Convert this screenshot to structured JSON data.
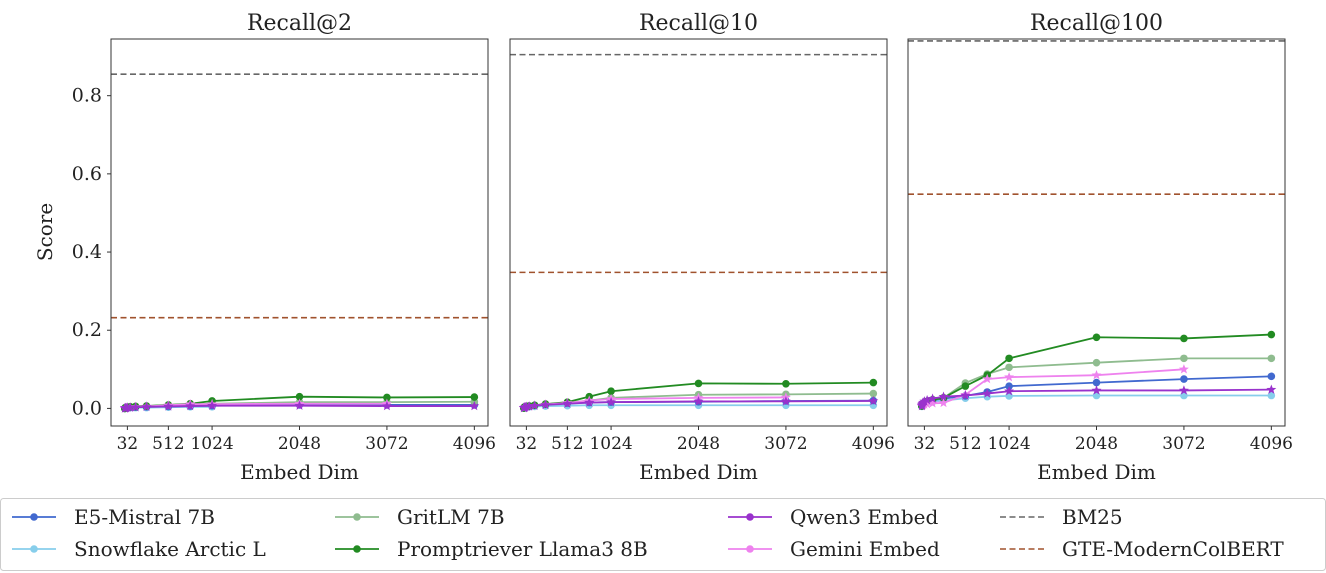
{
  "chart_data": {
    "type": "line",
    "ylabel": "Score",
    "xlabel": "Embed Dim",
    "ylim": [
      -0.045,
      0.945
    ],
    "yticks": [
      0.0,
      0.2,
      0.4,
      0.6,
      0.8
    ],
    "ytick_labels": [
      "0.0",
      "0.2",
      "0.4",
      "0.6",
      "0.8"
    ],
    "xlim": [
      -160,
      4256
    ],
    "xticks": [
      32,
      512,
      1024,
      2048,
      3072,
      4096
    ],
    "xtick_labels": [
      "32",
      "512",
      "1024",
      "2048",
      "3072",
      "4096"
    ],
    "grid": false,
    "legend_position": "bottom",
    "colors": {
      "E5-Mistral 7B": "#4169cf",
      "Snowflake Arctic L": "#87ceeb",
      "GritLM 7B": "#8fbc8f",
      "Promptriever Llama3 8B": "#228b22",
      "Qwen3 Embed": "#9932cc",
      "Gemini Embed": "#ee82ee",
      "BM25": "#666666",
      "GTE-ModernColBERT": "#a0522d"
    },
    "legend": [
      {
        "name": "E5-Mistral 7B",
        "style": "line-marker"
      },
      {
        "name": "Snowflake Arctic L",
        "style": "line-marker"
      },
      {
        "name": "GritLM 7B",
        "style": "line-marker"
      },
      {
        "name": "Promptriever Llama3 8B",
        "style": "line-marker"
      },
      {
        "name": "Qwen3 Embed",
        "style": "line-marker"
      },
      {
        "name": "Gemini Embed",
        "style": "line-marker"
      },
      {
        "name": "BM25",
        "style": "dashed"
      },
      {
        "name": "GTE-ModernColBERT",
        "style": "dashed"
      }
    ],
    "panels": [
      {
        "title": "Recall@2",
        "baselines": [
          {
            "name": "BM25",
            "value": 0.855
          },
          {
            "name": "GTE-ModernColBERT",
            "value": 0.232
          }
        ],
        "series": [
          {
            "name": "Snowflake Arctic L",
            "marker": "circle",
            "x": [
              2,
              4,
              8,
              16,
              32,
              64,
              128,
              256,
              512,
              768,
              1024
            ],
            "y": [
              0.0,
              0.001,
              0.001,
              0.001,
              0.001,
              0.002,
              0.002,
              0.002,
              0.003,
              0.004,
              0.004
            ]
          },
          {
            "name": "E5-Mistral 7B",
            "marker": "circle",
            "x": [
              2,
              4,
              8,
              16,
              32,
              64,
              128,
              256,
              512,
              768,
              1024,
              2048,
              3072,
              4096
            ],
            "y": [
              0.0,
              0.001,
              0.001,
              0.002,
              0.002,
              0.003,
              0.003,
              0.004,
              0.005,
              0.006,
              0.007,
              0.009,
              0.009,
              0.009
            ]
          },
          {
            "name": "GritLM 7B",
            "marker": "circle",
            "x": [
              2,
              4,
              8,
              16,
              32,
              64,
              128,
              256,
              512,
              768,
              1024,
              2048,
              3072,
              4096
            ],
            "y": [
              0.0,
              0.001,
              0.002,
              0.002,
              0.003,
              0.004,
              0.005,
              0.006,
              0.008,
              0.01,
              0.012,
              0.016,
              0.016,
              0.017
            ]
          },
          {
            "name": "Promptriever Llama3 8B",
            "marker": "circle",
            "x": [
              2,
              4,
              8,
              16,
              32,
              64,
              128,
              256,
              512,
              768,
              1024,
              2048,
              3072,
              4096
            ],
            "y": [
              0.0,
              0.001,
              0.002,
              0.002,
              0.003,
              0.004,
              0.005,
              0.006,
              0.009,
              0.012,
              0.019,
              0.03,
              0.028,
              0.029
            ]
          },
          {
            "name": "Gemini Embed",
            "marker": "star",
            "x": [
              2,
              4,
              8,
              16,
              32,
              64,
              128,
              256,
              512,
              768,
              1024,
              2048,
              3072
            ],
            "y": [
              0.0,
              0.001,
              0.001,
              0.002,
              0.002,
              0.003,
              0.004,
              0.005,
              0.008,
              0.011,
              0.011,
              0.012,
              0.012
            ]
          },
          {
            "name": "Qwen3 Embed",
            "marker": "star",
            "x": [
              2,
              4,
              8,
              16,
              32,
              64,
              128,
              256,
              512,
              768,
              1024,
              2048,
              3072,
              4096
            ],
            "y": [
              0.0,
              0.001,
              0.001,
              0.001,
              0.002,
              0.002,
              0.003,
              0.004,
              0.005,
              0.006,
              0.007,
              0.007,
              0.006,
              0.006
            ]
          }
        ]
      },
      {
        "title": "Recall@10",
        "baselines": [
          {
            "name": "BM25",
            "value": 0.905
          },
          {
            "name": "GTE-ModernColBERT",
            "value": 0.348
          }
        ],
        "series": [
          {
            "name": "Snowflake Arctic L",
            "marker": "circle",
            "x": [
              2,
              4,
              8,
              16,
              32,
              64,
              128,
              256,
              512,
              768,
              1024,
              2048,
              3072,
              4096
            ],
            "y": [
              0.001,
              0.001,
              0.002,
              0.002,
              0.003,
              0.004,
              0.005,
              0.006,
              0.007,
              0.008,
              0.008,
              0.008,
              0.008,
              0.008
            ]
          },
          {
            "name": "E5-Mistral 7B",
            "marker": "circle",
            "x": [
              2,
              4,
              8,
              16,
              32,
              64,
              128,
              256,
              512,
              768,
              1024,
              2048,
              3072,
              4096
            ],
            "y": [
              0.001,
              0.002,
              0.003,
              0.004,
              0.005,
              0.006,
              0.008,
              0.01,
              0.013,
              0.015,
              0.016,
              0.017,
              0.019,
              0.02
            ]
          },
          {
            "name": "GritLM 7B",
            "marker": "circle",
            "x": [
              2,
              4,
              8,
              16,
              32,
              64,
              128,
              256,
              512,
              768,
              1024,
              2048,
              3072,
              4096
            ],
            "y": [
              0.001,
              0.002,
              0.003,
              0.004,
              0.005,
              0.006,
              0.008,
              0.011,
              0.015,
              0.02,
              0.027,
              0.035,
              0.036,
              0.038
            ]
          },
          {
            "name": "Promptriever Llama3 8B",
            "marker": "circle",
            "x": [
              2,
              4,
              8,
              16,
              32,
              64,
              128,
              256,
              512,
              768,
              1024,
              2048,
              3072,
              4096
            ],
            "y": [
              0.001,
              0.002,
              0.003,
              0.004,
              0.005,
              0.006,
              0.008,
              0.011,
              0.016,
              0.03,
              0.044,
              0.064,
              0.063,
              0.066
            ]
          },
          {
            "name": "Gemini Embed",
            "marker": "star",
            "x": [
              2,
              4,
              8,
              16,
              32,
              64,
              128,
              256,
              512,
              768,
              1024,
              2048,
              3072
            ],
            "y": [
              0.001,
              0.002,
              0.002,
              0.003,
              0.004,
              0.005,
              0.007,
              0.01,
              0.014,
              0.02,
              0.024,
              0.027,
              0.028
            ]
          },
          {
            "name": "Qwen3 Embed",
            "marker": "star",
            "x": [
              2,
              4,
              8,
              16,
              32,
              64,
              128,
              256,
              512,
              768,
              1024,
              2048,
              3072,
              4096
            ],
            "y": [
              0.001,
              0.002,
              0.002,
              0.003,
              0.004,
              0.005,
              0.007,
              0.009,
              0.012,
              0.015,
              0.016,
              0.018,
              0.018,
              0.019
            ]
          }
        ]
      },
      {
        "title": "Recall@100",
        "baselines": [
          {
            "name": "BM25",
            "value": 0.94
          },
          {
            "name": "GTE-ModernColBERT",
            "value": 0.548
          }
        ],
        "series": [
          {
            "name": "Snowflake Arctic L",
            "marker": "circle",
            "x": [
              2,
              4,
              8,
              16,
              32,
              64,
              128,
              256,
              512,
              768,
              1024,
              2048,
              3072,
              4096
            ],
            "y": [
              0.005,
              0.007,
              0.009,
              0.011,
              0.013,
              0.015,
              0.017,
              0.02,
              0.026,
              0.03,
              0.032,
              0.033,
              0.033,
              0.033
            ]
          },
          {
            "name": "E5-Mistral 7B",
            "marker": "circle",
            "x": [
              2,
              4,
              8,
              16,
              32,
              64,
              128,
              256,
              512,
              768,
              1024,
              2048,
              3072,
              4096
            ],
            "y": [
              0.006,
              0.008,
              0.01,
              0.012,
              0.015,
              0.018,
              0.021,
              0.025,
              0.032,
              0.042,
              0.057,
              0.066,
              0.075,
              0.082
            ]
          },
          {
            "name": "GritLM 7B",
            "marker": "circle",
            "x": [
              2,
              4,
              8,
              16,
              32,
              64,
              128,
              256,
              512,
              768,
              1024,
              2048,
              3072,
              4096
            ],
            "y": [
              0.006,
              0.008,
              0.01,
              0.012,
              0.015,
              0.018,
              0.022,
              0.027,
              0.065,
              0.088,
              0.105,
              0.117,
              0.128,
              0.128
            ]
          },
          {
            "name": "Promptriever Llama3 8B",
            "marker": "circle",
            "x": [
              2,
              4,
              8,
              16,
              32,
              64,
              128,
              256,
              512,
              768,
              1024,
              2048,
              3072,
              4096
            ],
            "y": [
              0.006,
              0.008,
              0.01,
              0.012,
              0.015,
              0.018,
              0.022,
              0.027,
              0.057,
              0.085,
              0.128,
              0.182,
              0.179,
              0.189
            ]
          },
          {
            "name": "Gemini Embed",
            "marker": "star",
            "x": [
              2,
              4,
              8,
              16,
              32,
              64,
              128,
              256,
              512,
              768,
              1024,
              2048,
              3072
            ],
            "y": [
              0.006,
              0.007,
              0.008,
              0.009,
              0.01,
              0.011,
              0.013,
              0.014,
              0.035,
              0.075,
              0.08,
              0.085,
              0.1
            ]
          },
          {
            "name": "Qwen3 Embed",
            "marker": "star",
            "x": [
              2,
              4,
              8,
              16,
              32,
              64,
              128,
              256,
              512,
              768,
              1024,
              2048,
              3072,
              4096
            ],
            "y": [
              0.006,
              0.009,
              0.012,
              0.015,
              0.018,
              0.021,
              0.025,
              0.03,
              0.033,
              0.038,
              0.044,
              0.046,
              0.046,
              0.048
            ]
          }
        ]
      }
    ]
  }
}
